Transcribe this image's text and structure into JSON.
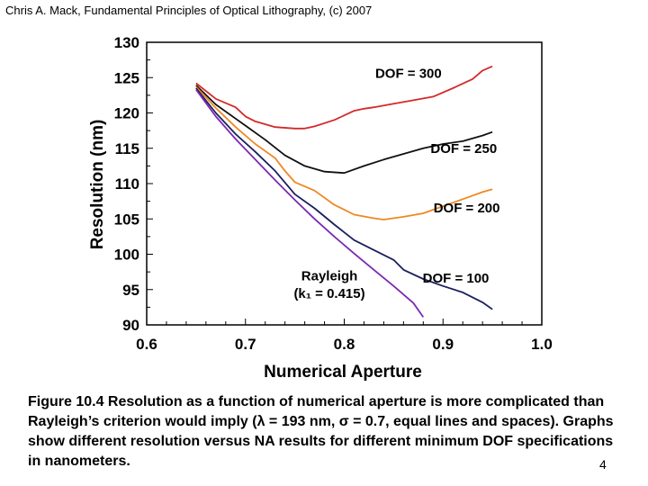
{
  "header": "Chris A. Mack, Fundamental Principles of Optical Lithography, (c) 2007",
  "caption": "Figure 10.4  Resolution as a function of numerical aperture is more complicated than Rayleigh’s criterion would imply (λ = 193 nm, σ = 0.7, equal lines and spaces). Graphs show different resolution versus NA results for different minimum DOF specifications in nanometers.",
  "slide_number": "4",
  "chart_data": {
    "type": "line",
    "title": "",
    "xlabel": "Numerical Aperture",
    "ylabel": "Resolution (nm)",
    "xlim": [
      0.6,
      1.0
    ],
    "ylim": [
      90,
      130
    ],
    "x_ticks": [
      "0.6",
      "0.7",
      "0.8",
      "0.9",
      "1.0"
    ],
    "y_ticks": [
      "90",
      "95",
      "100",
      "105",
      "110",
      "115",
      "120",
      "125",
      "130"
    ],
    "grid": false,
    "series": [
      {
        "name": "DOF = 300",
        "color": "#d42a2a",
        "points": [
          [
            0.65,
            124.2
          ],
          [
            0.67,
            122.0
          ],
          [
            0.69,
            120.8
          ],
          [
            0.7,
            119.5
          ],
          [
            0.71,
            118.8
          ],
          [
            0.73,
            118.0
          ],
          [
            0.75,
            117.8
          ],
          [
            0.76,
            117.8
          ],
          [
            0.77,
            118.1
          ],
          [
            0.79,
            119.0
          ],
          [
            0.81,
            120.3
          ],
          [
            0.82,
            120.6
          ],
          [
            0.83,
            120.8
          ],
          [
            0.85,
            121.3
          ],
          [
            0.87,
            121.8
          ],
          [
            0.89,
            122.3
          ],
          [
            0.91,
            123.5
          ],
          [
            0.93,
            124.8
          ],
          [
            0.94,
            126.0
          ],
          [
            0.95,
            126.6
          ]
        ]
      },
      {
        "name": "DOF = 250",
        "color": "#111111",
        "points": [
          [
            0.65,
            123.9
          ],
          [
            0.67,
            121.2
          ],
          [
            0.69,
            119.2
          ],
          [
            0.7,
            118.2
          ],
          [
            0.72,
            116.2
          ],
          [
            0.74,
            114.0
          ],
          [
            0.76,
            112.5
          ],
          [
            0.78,
            111.7
          ],
          [
            0.8,
            111.5
          ],
          [
            0.82,
            112.5
          ],
          [
            0.84,
            113.4
          ],
          [
            0.86,
            114.2
          ],
          [
            0.88,
            115.0
          ],
          [
            0.9,
            115.6
          ],
          [
            0.92,
            116.0
          ],
          [
            0.94,
            116.8
          ],
          [
            0.95,
            117.3
          ]
        ]
      },
      {
        "name": "DOF = 200",
        "color": "#ee8822",
        "points": [
          [
            0.65,
            123.7
          ],
          [
            0.67,
            120.7
          ],
          [
            0.69,
            118.0
          ],
          [
            0.71,
            115.6
          ],
          [
            0.73,
            113.6
          ],
          [
            0.74,
            111.8
          ],
          [
            0.75,
            110.2
          ],
          [
            0.77,
            109.0
          ],
          [
            0.79,
            107.0
          ],
          [
            0.81,
            105.6
          ],
          [
            0.83,
            105.1
          ],
          [
            0.84,
            104.9
          ],
          [
            0.86,
            105.3
          ],
          [
            0.88,
            105.8
          ],
          [
            0.9,
            106.8
          ],
          [
            0.92,
            107.8
          ],
          [
            0.94,
            108.8
          ],
          [
            0.95,
            109.2
          ]
        ]
      },
      {
        "name": "DOF = 100",
        "color": "#1a1f5e",
        "points": [
          [
            0.65,
            123.5
          ],
          [
            0.67,
            120.0
          ],
          [
            0.69,
            117.0
          ],
          [
            0.71,
            114.5
          ],
          [
            0.73,
            111.8
          ],
          [
            0.75,
            108.5
          ],
          [
            0.77,
            106.5
          ],
          [
            0.79,
            104.2
          ],
          [
            0.81,
            102.0
          ],
          [
            0.83,
            100.6
          ],
          [
            0.85,
            99.2
          ],
          [
            0.86,
            97.8
          ],
          [
            0.88,
            96.5
          ],
          [
            0.9,
            95.5
          ],
          [
            0.92,
            94.6
          ],
          [
            0.94,
            93.2
          ],
          [
            0.95,
            92.2
          ]
        ]
      },
      {
        "name": "Rayleigh",
        "color": "#7a2ab0",
        "points": [
          [
            0.65,
            123.3
          ],
          [
            0.67,
            119.5
          ],
          [
            0.69,
            116.3
          ],
          [
            0.71,
            113.4
          ],
          [
            0.73,
            110.5
          ],
          [
            0.75,
            107.7
          ],
          [
            0.77,
            105.0
          ],
          [
            0.79,
            102.5
          ],
          [
            0.81,
            100.1
          ],
          [
            0.83,
            97.8
          ],
          [
            0.85,
            95.5
          ],
          [
            0.87,
            93.1
          ],
          [
            0.88,
            91.1
          ]
        ]
      }
    ],
    "annotations": [
      {
        "text": "DOF = 300",
        "x": 0.865,
        "y": 125.0,
        "anchor": "middle"
      },
      {
        "text": "DOF = 250",
        "x": 0.921,
        "y": 114.3,
        "anchor": "middle"
      },
      {
        "text": "DOF = 200",
        "x": 0.924,
        "y": 105.9,
        "anchor": "middle"
      },
      {
        "text": "DOF = 100",
        "x": 0.913,
        "y": 96.0,
        "anchor": "middle"
      },
      {
        "text": "Rayleigh",
        "x": 0.785,
        "y": 96.3,
        "anchor": "middle"
      },
      {
        "text": "(k₁ = 0.415)",
        "x": 0.785,
        "y": 93.8,
        "anchor": "middle"
      }
    ]
  }
}
